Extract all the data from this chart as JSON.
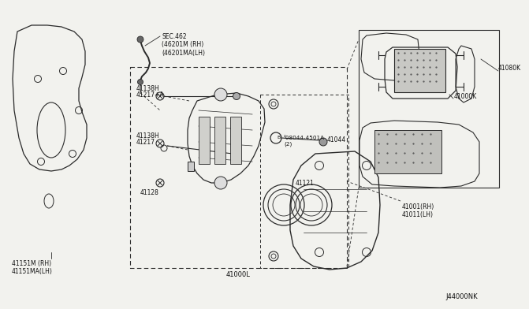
{
  "bg_color": "#f2f2ee",
  "line_color": "#2a2a2a",
  "text_color": "#111111",
  "font_size": 5.5,
  "diagram_id": "J44000NK",
  "labels": {
    "sec462": "SEC.462\n(46201M (RH)\n(46201MA(LH)",
    "l41138H_top": "41138H",
    "l41217A": "41217+A",
    "l41138H_bot": "41138H",
    "l41217": "41217",
    "l41128": "41128",
    "l41121": "41121",
    "l41000L": "41000L",
    "l41000K": "41000K",
    "l41080K": "41080K",
    "l41044": "41044",
    "l08044": "²08044-4501A\n(2)",
    "l41001": "41001(RH)\n41011(LH)",
    "l41151M": "41151M (RH)\n41151MA(LH)"
  }
}
